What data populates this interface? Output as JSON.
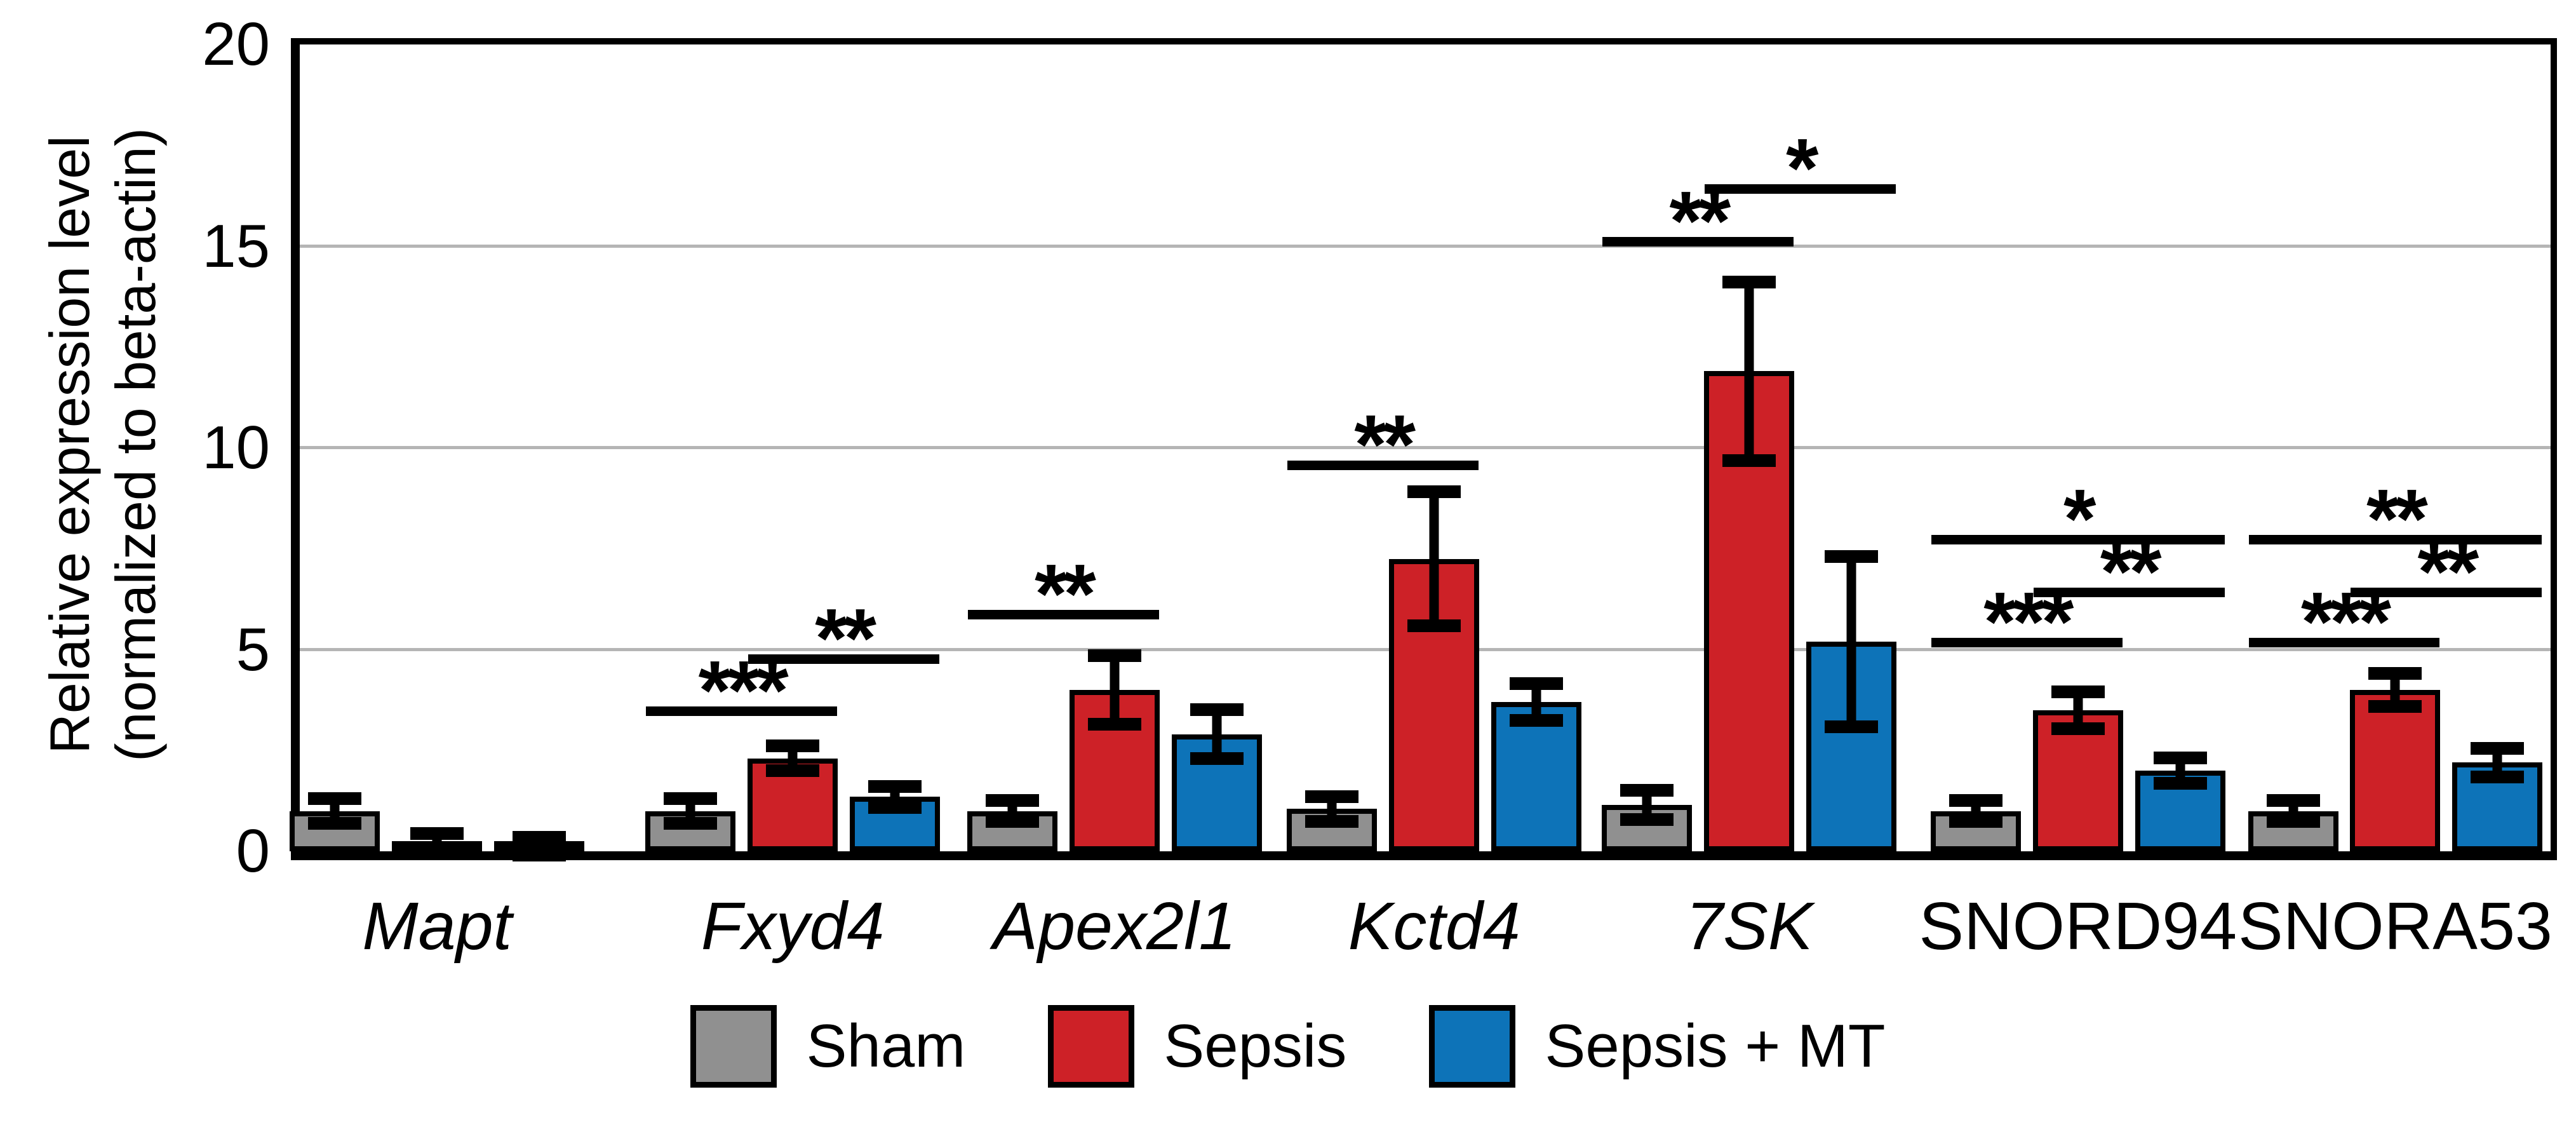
{
  "chart_data": {
    "type": "bar",
    "title": "",
    "ylabel_line1": "Relative expression level",
    "ylabel_line2": "(normalized to beta-actin)",
    "ylim": [
      0,
      20
    ],
    "yticks": [
      0,
      5,
      10,
      15,
      20
    ],
    "gridlines": [
      5,
      10,
      15
    ],
    "grid_color": "#b5b5b5",
    "legend_position": "bottom",
    "categories": [
      "Mapt",
      "Fxyd4",
      "Apex2l1",
      "Kctd4",
      "7SK",
      "SNORD94",
      "SNORA53"
    ],
    "categories_italic": [
      true,
      true,
      true,
      true,
      true,
      false,
      false
    ],
    "group_centers_frac": [
      0.061,
      0.219,
      0.362,
      0.504,
      0.644,
      0.79,
      0.931
    ],
    "series": [
      {
        "name": "Sham",
        "color": "#909090",
        "values": [
          1.0,
          1.0,
          1.0,
          1.05,
          1.15,
          1.0,
          1.0
        ],
        "errors": [
          0.15,
          0.15,
          0.1,
          0.15,
          0.2,
          0.1,
          0.1
        ]
      },
      {
        "name": "Sepsis",
        "color": "#cd2127",
        "values": [
          0.2,
          2.3,
          4.0,
          7.25,
          11.9,
          3.5,
          4.0
        ],
        "errors": [
          0.08,
          0.15,
          0.7,
          1.5,
          2.05,
          0.3,
          0.25
        ]
      },
      {
        "name": "Sepsis + MT",
        "color": "#0d73b8",
        "values": [
          0.13,
          1.35,
          2.9,
          3.7,
          5.2,
          2.0,
          2.2
        ],
        "errors": [
          0.06,
          0.1,
          0.45,
          0.3,
          1.95,
          0.15,
          0.2
        ]
      }
    ],
    "significance": [
      {
        "group": "Fxyd4",
        "from": 0,
        "to": 1,
        "level": 3.35,
        "label": "***"
      },
      {
        "group": "Fxyd4",
        "from": 1,
        "to": 2,
        "level": 4.65,
        "label": "**"
      },
      {
        "group": "Apex2l1",
        "from": 0,
        "to": 1,
        "level": 5.75,
        "label": "**"
      },
      {
        "group": "Kctd4",
        "from": 0,
        "to": 1,
        "level": 9.45,
        "label": "**"
      },
      {
        "group": "7SK",
        "from": 0,
        "to": 1,
        "level": 15.0,
        "label": "**"
      },
      {
        "group": "7SK",
        "from": 1,
        "to": 2,
        "level": 16.3,
        "label": "*"
      },
      {
        "group": "SNORD94",
        "from": 0,
        "to": 1,
        "level": 5.05,
        "label": "***"
      },
      {
        "group": "SNORD94",
        "from": 1,
        "to": 2,
        "level": 6.3,
        "label": "**"
      },
      {
        "group": "SNORD94",
        "from": 0,
        "to": 2,
        "level": 7.6,
        "label": "*"
      },
      {
        "group": "SNORA53",
        "from": 0,
        "to": 1,
        "level": 5.05,
        "label": "***"
      },
      {
        "group": "SNORA53",
        "from": 1,
        "to": 2,
        "level": 6.3,
        "label": "**"
      },
      {
        "group": "SNORA53",
        "from": 0,
        "to": 2,
        "level": 7.6,
        "label": "**"
      }
    ],
    "legend": [
      {
        "label": "Sham"
      },
      {
        "label": "Sepsis"
      },
      {
        "label": "Sepsis + MT"
      }
    ]
  }
}
